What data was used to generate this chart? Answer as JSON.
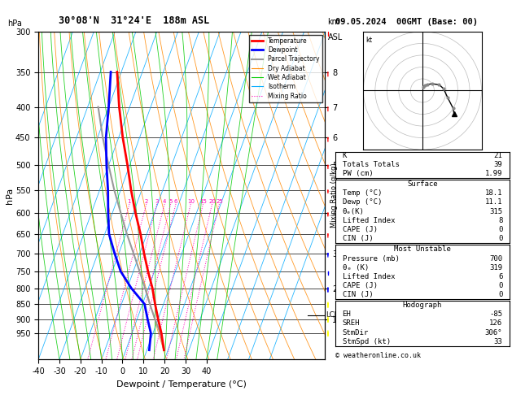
{
  "title_left": "30°08'N  31°24'E  188m ASL",
  "title_right": "09.05.2024  00GMT (Base: 00)",
  "xlabel": "Dewpoint / Temperature (°C)",
  "ylabel_left": "hPa",
  "bg_color": "#ffffff",
  "pressure_ticks": [
    300,
    350,
    400,
    450,
    500,
    550,
    600,
    650,
    700,
    750,
    800,
    850,
    900,
    950
  ],
  "isotherm_color": "#00aaff",
  "dry_adiabat_color": "#ff8800",
  "wet_adiabat_color": "#00cc00",
  "mixing_ratio_color": "#ff00bb",
  "temp_color": "#ff0000",
  "dewp_color": "#0000ff",
  "parcel_color": "#999999",
  "temp_profile_T": [
    18.1,
    14.0,
    10.0,
    6.0,
    2.0,
    -3.0,
    -8.0,
    -13.0,
    -19.0,
    -25.0,
    -31.0,
    -38.0,
    -45.0,
    -52.0
  ],
  "temp_profile_P": [
    1013,
    950,
    900,
    850,
    800,
    750,
    700,
    650,
    600,
    550,
    500,
    450,
    400,
    350
  ],
  "dewp_profile_T": [
    11.1,
    9.0,
    5.0,
    1.0,
    -8.0,
    -16.0,
    -22.0,
    -28.0,
    -32.0,
    -36.0,
    -41.0,
    -46.0,
    -50.0,
    -55.0
  ],
  "dewp_profile_P": [
    1013,
    950,
    900,
    850,
    800,
    750,
    700,
    650,
    600,
    550,
    500,
    450,
    400,
    350
  ],
  "parcel_T": [
    18.1,
    13.5,
    8.5,
    3.5,
    -1.5,
    -7.0,
    -13.0,
    -19.5,
    -26.0,
    -33.0,
    -40.0,
    -47.5,
    -55.0
  ],
  "parcel_P": [
    1013,
    950,
    900,
    850,
    800,
    750,
    700,
    650,
    600,
    550,
    500,
    450,
    400
  ],
  "km_ticks": [
    1,
    2,
    3,
    4,
    5,
    6,
    7,
    8
  ],
  "km_pressures": [
    900,
    800,
    700,
    600,
    500,
    450,
    400,
    350
  ],
  "mixing_ratio_values": [
    1,
    2,
    3,
    4,
    5,
    6,
    10,
    15,
    20,
    25
  ],
  "lcl_pressure": 887,
  "lcl_label": "LCL",
  "stats": {
    "K": 21,
    "Totals_Totals": 39,
    "PW_cm": 1.99,
    "Surface_Temp": 18.1,
    "Surface_Dewp": 11.1,
    "Surface_ThetaE": 315,
    "Surface_LiftedIndex": 8,
    "Surface_CAPE": 0,
    "Surface_CIN": 0,
    "MU_Pressure": 700,
    "MU_ThetaE": 319,
    "MU_LiftedIndex": 6,
    "MU_CAPE": 0,
    "MU_CIN": 0,
    "EH": -85,
    "SREH": 126,
    "StmDir": 306,
    "StmSpd": 33
  },
  "wind_data": [
    [
      950,
      306,
      33,
      "yellow"
    ],
    [
      900,
      300,
      30,
      "yellow"
    ],
    [
      850,
      295,
      25,
      "yellow"
    ],
    [
      800,
      280,
      20,
      "blue"
    ],
    [
      750,
      270,
      18,
      "blue"
    ],
    [
      700,
      260,
      15,
      "blue"
    ],
    [
      650,
      250,
      12,
      "red"
    ],
    [
      600,
      240,
      10,
      "red"
    ],
    [
      550,
      230,
      8,
      "red"
    ],
    [
      500,
      220,
      6,
      "red"
    ],
    [
      450,
      210,
      5,
      "red"
    ],
    [
      400,
      200,
      4,
      "red"
    ],
    [
      350,
      190,
      3,
      "red"
    ],
    [
      300,
      180,
      2,
      "red"
    ]
  ],
  "hodo_dirs": [
    306,
    300,
    285,
    265,
    250,
    235,
    220,
    205,
    195
  ],
  "hodo_speeds": [
    33,
    30,
    22,
    18,
    15,
    10,
    7,
    5,
    3
  ]
}
